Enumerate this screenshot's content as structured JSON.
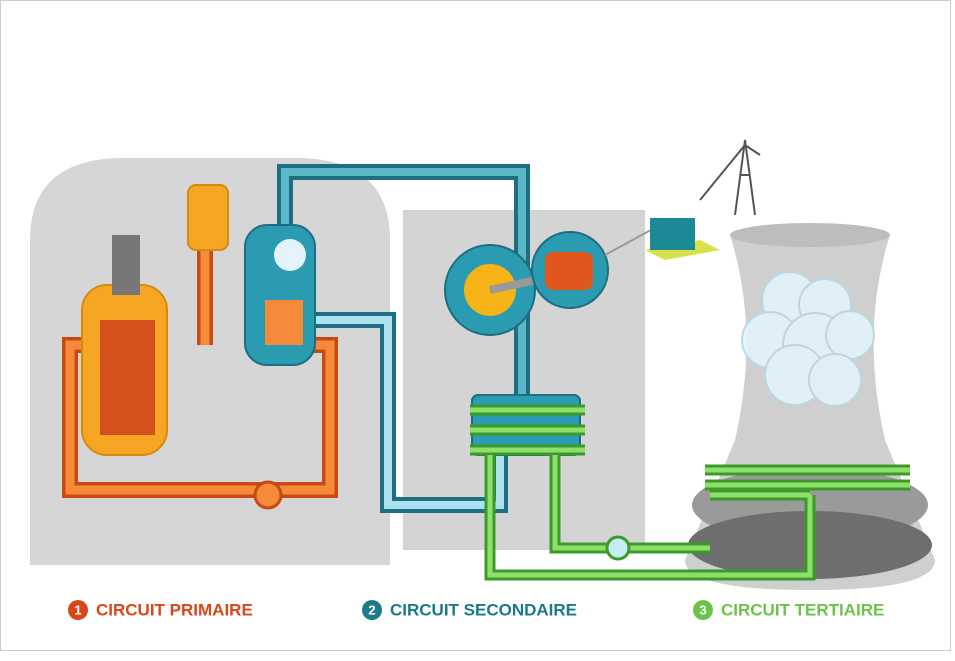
{
  "legend": [
    {
      "number": "1",
      "label": "CIRCUIT PRIMAIRE"
    },
    {
      "number": "2",
      "label": "CIRCUIT SECONDAIRE"
    },
    {
      "number": "3",
      "label": "CIRCUIT TERTIAIRE"
    }
  ]
}
